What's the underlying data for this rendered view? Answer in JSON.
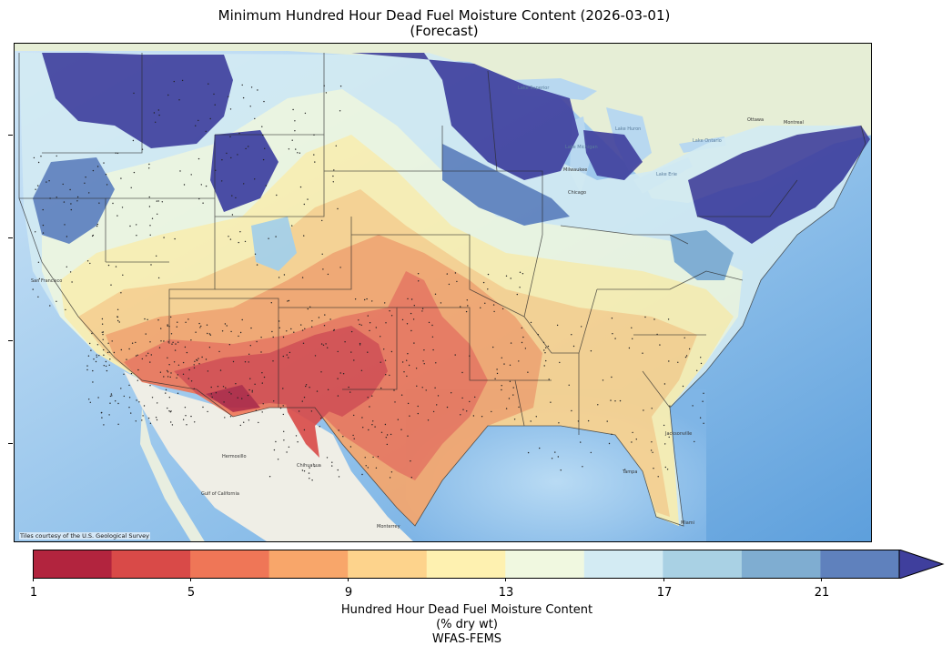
{
  "title": "Minimum Hundred Hour Dead Fuel Moisture Content (2026-03-01)",
  "subtitle": "(Forecast)",
  "attribution": "Tiles courtesy of the U.S. Geological Survey",
  "colorbar": {
    "label_line1": "Hundred Hour Dead Fuel Moisture Content",
    "label_line2": "(% dry wt)",
    "label_line3": "WFAS-FEMS",
    "ticks": [
      "1",
      "5",
      "9",
      "13",
      "17",
      "21"
    ],
    "levels": [
      1,
      3,
      5,
      7,
      9,
      11,
      13,
      15,
      17,
      19,
      21,
      23
    ],
    "colors": [
      "#b2243e",
      "#d94a48",
      "#ef7657",
      "#f8a66a",
      "#fdd38c",
      "#fef1b0",
      "#f0f8e0",
      "#d3ebf3",
      "#a9d1e4",
      "#7fadd1",
      "#5f81bd",
      "#3f3f9d"
    ],
    "extend": "max"
  },
  "map_labels": {
    "lake_superior": "Lake Superior",
    "lake_michigan": "Lake Michigan",
    "lake_huron": "Lake Huron",
    "lake_erie": "Lake Erie",
    "lake_ontario": "Lake Ontario",
    "milwaukee": "Milwaukee",
    "chicago": "Chicago",
    "ottawa": "Ottawa",
    "montreal": "Montreal",
    "san_francisco": "San Francisco",
    "hermosillo": "Hermosillo",
    "chihuahua": "Chihuahua",
    "monterrey": "Monterrey",
    "jacksonville": "Jacksonville",
    "tampa": "Tampa",
    "miami": "Miami",
    "gulf_of_california": "Gulf of California"
  }
}
